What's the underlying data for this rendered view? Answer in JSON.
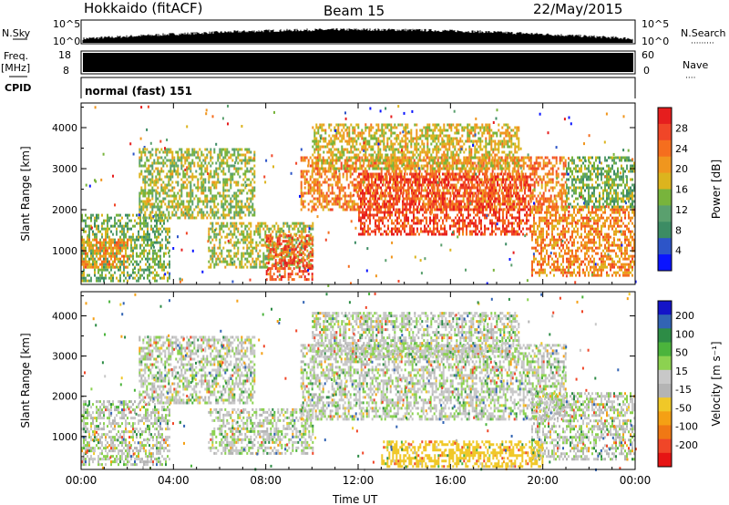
{
  "header": {
    "station": "Hokkaido (fitACF)",
    "beam": "Beam 15",
    "date": "22/May/2015"
  },
  "left_labels": {
    "nsky": "N.Sky",
    "freq": "Freq.",
    "mhz": "[MHz]",
    "cpid": "CPID"
  },
  "right_labels": {
    "nsearch": "N.Search",
    "nsearch_dots": "·········",
    "nave": "Nave",
    "nave_dots": "····"
  },
  "noise_axis": {
    "left_top": "10^5",
    "left_bottom": "10^0",
    "right_top": "10^5",
    "right_bottom": "10^0"
  },
  "freq_axis": {
    "left_top": "18",
    "left_bottom": "8",
    "right_top": "60",
    "right_bottom": "0"
  },
  "cpid_text": "normal (fast) 151",
  "xlabel": "Time UT",
  "colors": {
    "power": [
      "#0a14ff",
      "#2d55c8",
      "#3c8c64",
      "#5aa06e",
      "#78b43c",
      "#dcb41e",
      "#f0961e",
      "#f56e1e",
      "#f04628",
      "#e61e1e"
    ],
    "velocity": [
      "#1414c8",
      "#3264b4",
      "#2d8c46",
      "#4bb43c",
      "#8cd250",
      "#c8c8c8",
      "#b4b4b4",
      "#f0c828",
      "#f5a014",
      "#f07814",
      "#f04628",
      "#e61414"
    ]
  },
  "chart_data": [
    {
      "type": "heatmap",
      "name": "power",
      "ylabel": "Slant Range [km]",
      "xlabel": "Time UT",
      "x_ticks": [
        "00:00",
        "04:00",
        "08:00",
        "12:00",
        "16:00",
        "20:00",
        "00:00"
      ],
      "xlim_hours": [
        0,
        24
      ],
      "y_ticks": [
        1000,
        2000,
        3000,
        4000
      ],
      "ylim": [
        180,
        4600
      ],
      "colorbar": {
        "label": "Power [dB]",
        "ticks": [
          4,
          8,
          12,
          16,
          20,
          24,
          28
        ],
        "range": [
          0,
          32
        ]
      },
      "regions": [
        {
          "t0": 0.0,
          "t1": 3.8,
          "r0": 300,
          "r1": 1900,
          "value": 13
        },
        {
          "t0": 0.0,
          "t1": 2.0,
          "r0": 600,
          "r1": 1300,
          "value": 21
        },
        {
          "t0": 2.5,
          "t1": 7.5,
          "r0": 1800,
          "r1": 3500,
          "value": 15
        },
        {
          "t0": 5.5,
          "t1": 10.0,
          "r0": 600,
          "r1": 1700,
          "value": 16
        },
        {
          "t0": 8.0,
          "t1": 10.0,
          "r0": 300,
          "r1": 1400,
          "value": 26
        },
        {
          "t0": 9.5,
          "t1": 21.0,
          "r0": 2000,
          "r1": 3300,
          "value": 23
        },
        {
          "t0": 12.0,
          "t1": 19.5,
          "r0": 1400,
          "r1": 2900,
          "value": 27
        },
        {
          "t0": 10.0,
          "t1": 19.0,
          "r0": 3000,
          "r1": 4100,
          "value": 18
        },
        {
          "t0": 19.5,
          "t1": 24.0,
          "r0": 400,
          "r1": 2100,
          "value": 22
        },
        {
          "t0": 21.0,
          "t1": 24.0,
          "r0": 2100,
          "r1": 3300,
          "value": 13
        }
      ]
    },
    {
      "type": "heatmap",
      "name": "velocity",
      "ylabel": "Slant Range [km]",
      "xlabel": "Time UT",
      "x_ticks": [
        "00:00",
        "04:00",
        "08:00",
        "12:00",
        "16:00",
        "20:00",
        "00:00"
      ],
      "xlim_hours": [
        0,
        24
      ],
      "y_ticks": [
        1000,
        2000,
        3000,
        4000
      ],
      "ylim": [
        180,
        4600
      ],
      "colorbar": {
        "label": "Velocity [m s⁻¹]",
        "ticks": [
          200,
          100,
          50,
          15,
          -15,
          -50,
          -100,
          -200
        ],
        "range": [
          -250,
          250
        ]
      },
      "regions": [
        {
          "t0": 0.0,
          "t1": 3.8,
          "r0": 300,
          "r1": 1900,
          "value": 0
        },
        {
          "t0": 2.5,
          "t1": 7.5,
          "r0": 1800,
          "r1": 3500,
          "value": 0
        },
        {
          "t0": 5.5,
          "t1": 10.0,
          "r0": 600,
          "r1": 1700,
          "value": 0
        },
        {
          "t0": 9.5,
          "t1": 21.0,
          "r0": 1400,
          "r1": 3300,
          "value": 0
        },
        {
          "t0": 10.0,
          "t1": 19.0,
          "r0": 3000,
          "r1": 4100,
          "value": 0
        },
        {
          "t0": 19.5,
          "t1": 24.0,
          "r0": 400,
          "r1": 2100,
          "value": 0
        },
        {
          "t0": 13.0,
          "t1": 20.0,
          "r0": 250,
          "r1": 900,
          "value": -40
        }
      ]
    }
  ]
}
